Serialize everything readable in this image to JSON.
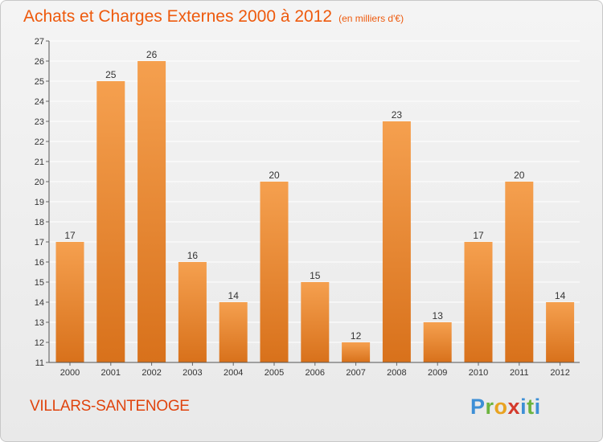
{
  "header": {
    "title": "Achats et Charges Externes 2000 à 2012",
    "subtitle": "(en milliers d'€)"
  },
  "footer": {
    "commune": "VILLARS-SANTENOGE",
    "logo_text": "Proxiti"
  },
  "colors": {
    "bar_top": "#f5a04f",
    "bar_bottom": "#d8711b",
    "title": "#ee5a0d"
  },
  "chart_data": {
    "type": "bar",
    "title": "Achats et Charges Externes 2000 à 2012",
    "subtitle": "(en milliers d'€)",
    "categories": [
      "2000",
      "2001",
      "2002",
      "2003",
      "2004",
      "2005",
      "2006",
      "2007",
      "2008",
      "2009",
      "2010",
      "2011",
      "2012"
    ],
    "values": [
      17,
      25,
      26,
      16,
      14,
      20,
      15,
      12,
      23,
      13,
      17,
      20,
      14
    ],
    "xlabel": "",
    "ylabel": "",
    "ylim": [
      11,
      27
    ],
    "yticks": [
      11,
      12,
      13,
      14,
      15,
      16,
      17,
      18,
      19,
      20,
      21,
      22,
      23,
      24,
      25,
      26,
      27
    ],
    "grid": true,
    "data_labels": true
  }
}
